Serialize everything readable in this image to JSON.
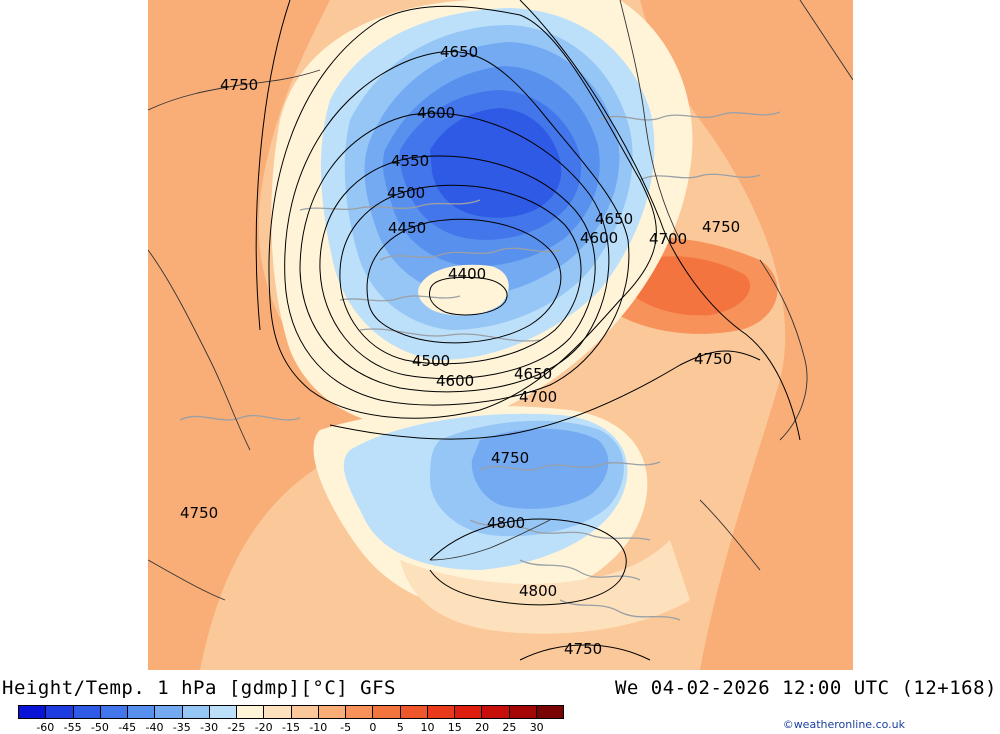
{
  "title": "Height/Temp. 1 hPa [gdmp][°C] GFS",
  "run_info": "We 04-02-2026 12:00 UTC (12+168)",
  "credit": "©weatheronline.co.uk",
  "colorbar": {
    "colors": [
      "#0a14d8",
      "#1e3ce0",
      "#2e5ae6",
      "#4276ea",
      "#5890ee",
      "#74aaf2",
      "#96c6f6",
      "#bce0fa",
      "#fff4d8",
      "#fde0bc",
      "#fbc89a",
      "#f9ae78",
      "#f7925a",
      "#f47440",
      "#f0562c",
      "#ea3a1c",
      "#e01e10",
      "#c80e0a",
      "#a40606",
      "#780404"
    ],
    "ticks": [
      "-60",
      "-55",
      "-50",
      "-45",
      "-40",
      "-35",
      "-30",
      "-25",
      "-20",
      "-15",
      "-10",
      "-5",
      "0",
      "5",
      "10",
      "15",
      "20",
      "25",
      "30"
    ]
  },
  "contour_labels": [
    {
      "text": "4650"
    },
    {
      "text": "4750"
    },
    {
      "text": "4600"
    },
    {
      "text": "4550"
    },
    {
      "text": "4500"
    },
    {
      "text": "4450"
    },
    {
      "text": "4400"
    },
    {
      "text": "4650"
    },
    {
      "text": "4600"
    },
    {
      "text": "4700"
    },
    {
      "text": "4750"
    },
    {
      "text": "4500"
    },
    {
      "text": "4600"
    },
    {
      "text": "4650"
    },
    {
      "text": "4700"
    },
    {
      "text": "4750"
    },
    {
      "text": "4750"
    },
    {
      "text": "4750"
    },
    {
      "text": "4800"
    },
    {
      "text": "4800"
    },
    {
      "text": "4750"
    }
  ]
}
